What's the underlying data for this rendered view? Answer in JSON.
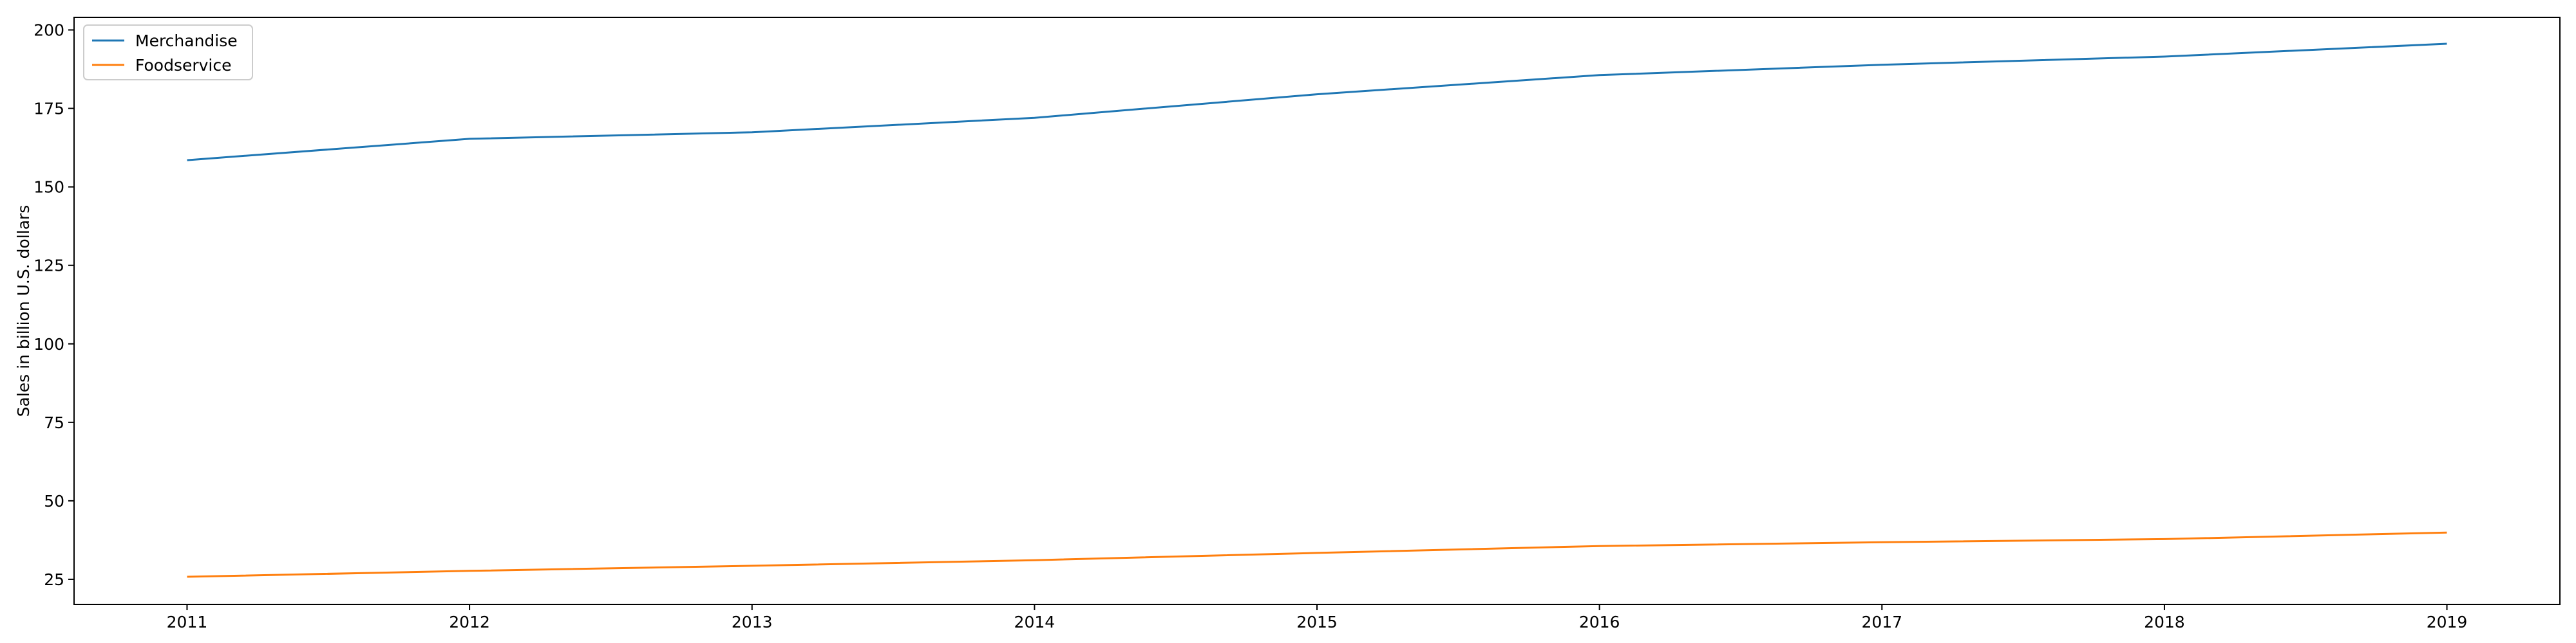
{
  "chart_data": {
    "type": "line",
    "title": "",
    "xlabel": "",
    "ylabel": "Sales in billion U.S. dollars",
    "x": [
      2011,
      2012,
      2013,
      2014,
      2015,
      2016,
      2017,
      2018,
      2019
    ],
    "x_ticks": [
      "2011",
      "2012",
      "2013",
      "2014",
      "2015",
      "2016",
      "2017",
      "2018",
      "2019"
    ],
    "xlim": [
      2010.6,
      2019.4
    ],
    "ylim": [
      17,
      204
    ],
    "y_ticks": [
      25,
      50,
      75,
      100,
      125,
      150,
      175,
      200
    ],
    "y_tick_labels": [
      "25",
      "50",
      "75",
      "100",
      "125",
      "150",
      "175",
      "200"
    ],
    "grid": false,
    "legend_position": "top-left",
    "series": [
      {
        "name": "Merchandise",
        "color": "#1f77b4",
        "values": [
          158.5,
          165.3,
          167.4,
          172.0,
          179.5,
          185.6,
          188.9,
          191.5,
          195.6
        ]
      },
      {
        "name": "Foodservice",
        "color": "#ff7f0e",
        "values": [
          25.8,
          27.7,
          29.3,
          31.1,
          33.4,
          35.6,
          36.8,
          37.8,
          39.9
        ]
      }
    ]
  }
}
